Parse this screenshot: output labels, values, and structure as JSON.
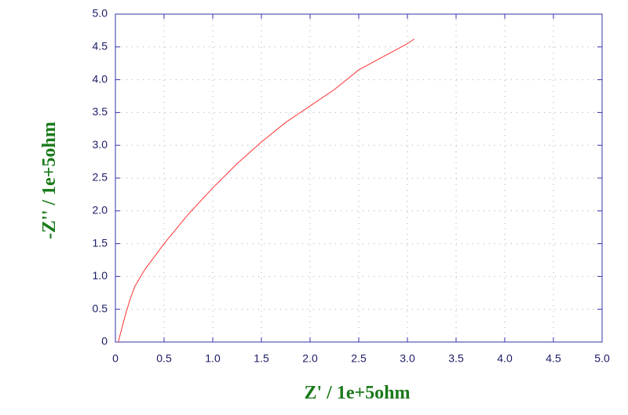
{
  "chart_data": {
    "type": "line",
    "x_label": "Z' / 1e+5ohm",
    "y_label": "-Z'' / 1e+5ohm",
    "x": [
      0.03,
      0.05,
      0.1,
      0.15,
      0.2,
      0.3,
      0.5,
      0.75,
      1.0,
      1.25,
      1.5,
      1.75,
      2.0,
      2.25,
      2.5,
      2.75,
      3.0,
      3.07
    ],
    "series": [
      {
        "color": "#ff3333",
        "values": [
          0,
          0.12,
          0.4,
          0.65,
          0.85,
          1.1,
          1.5,
          1.95,
          2.35,
          2.72,
          3.05,
          3.35,
          3.6,
          3.85,
          4.15,
          4.35,
          4.55,
          4.62
        ]
      }
    ],
    "xlim": [
      0,
      5
    ],
    "ylim": [
      0,
      5
    ],
    "xticks": [
      0,
      0.5,
      {
        "value": 1,
        "label": "1.0"
      },
      1.5,
      {
        "value": 2,
        "label": "2.0"
      },
      2.5,
      {
        "value": 3,
        "label": "3.0"
      },
      3.5,
      {
        "value": 4,
        "label": "4.0"
      },
      4.5,
      {
        "value": 5,
        "label": "5.0"
      }
    ],
    "yticks": [
      0,
      0.5,
      {
        "value": 1,
        "label": "1.0"
      },
      1.5,
      {
        "value": 2,
        "label": "2.0"
      },
      2.5,
      {
        "value": 3,
        "label": "3.0"
      },
      3.5,
      {
        "value": 4,
        "label": "4.0"
      },
      4.5,
      {
        "value": 5,
        "label": "5.0"
      }
    ],
    "grid": true,
    "axis_color": "#3333aa"
  }
}
